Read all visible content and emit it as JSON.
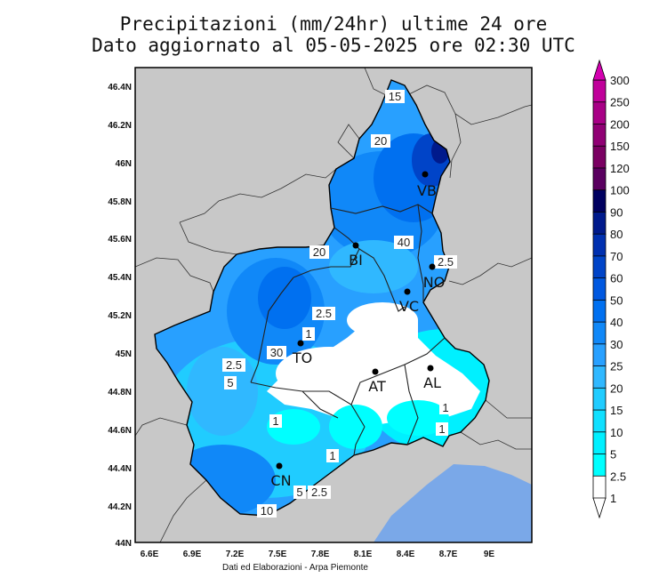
{
  "title_line1": "Precipitazioni (mm/24hr) ultime 24 ore",
  "title_line2": "Dato aggiornato al 05-05-2025 ore 02:30 UTC",
  "credit": "Dati ed Elaborazioni - Arpa Piemonte",
  "lat_ticks": [
    "46.4N",
    "46.2N",
    "46N",
    "45.8N",
    "45.6N",
    "45.4N",
    "45.2N",
    "45N",
    "44.8N",
    "44.6N",
    "44.4N",
    "44.2N",
    "44N"
  ],
  "lon_ticks": [
    "6.6E",
    "6.9E",
    "7.2E",
    "7.5E",
    "7.8E",
    "8.1E",
    "8.4E",
    "8.7E",
    "9E"
  ],
  "colorbar": {
    "labels": [
      "300",
      "250",
      "200",
      "150",
      "120",
      "100",
      "90",
      "80",
      "70",
      "60",
      "50",
      "40",
      "30",
      "25",
      "20",
      "15",
      "10",
      "5",
      "2.5",
      "1"
    ],
    "colors": [
      "#d400b0",
      "#c0009a",
      "#a80086",
      "#900074",
      "#7a0062",
      "#5a0060",
      "#000060",
      "#001a8c",
      "#0030b0",
      "#0044c8",
      "#0058e0",
      "#0070f0",
      "#1088f8",
      "#28a0ff",
      "#30b8ff",
      "#20ccff",
      "#10e0ff",
      "#00f0ff",
      "#00ffff",
      "#ffffff"
    ]
  },
  "cities": [
    {
      "name": "VB"
    },
    {
      "name": "BI"
    },
    {
      "name": "NO"
    },
    {
      "name": "VC"
    },
    {
      "name": "TO"
    },
    {
      "name": "AT"
    },
    {
      "name": "AL"
    },
    {
      "name": "CN"
    }
  ],
  "contour_labels": [
    "15",
    "20",
    "40",
    "20",
    "2.5",
    "2.5",
    "1",
    "30",
    "2.5",
    "5",
    "1",
    "1",
    "1",
    "1",
    "5",
    "2.5",
    "10"
  ]
}
